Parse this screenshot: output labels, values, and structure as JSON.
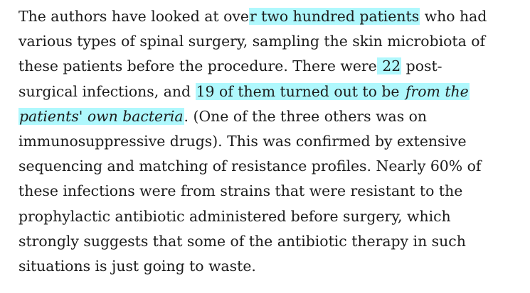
{
  "paragraph": {
    "lines": [
      {
        "segments": [
          {
            "text": "The authors have looked at ove",
            "hl": false,
            "italic": false
          },
          {
            "text": "r two hundred patients",
            "hl": true,
            "italic": false
          },
          {
            "text": " who had",
            "hl": false,
            "italic": false
          }
        ]
      },
      {
        "segments": [
          {
            "text": "various types of spinal surgery, sampling the skin microbiota of",
            "hl": false,
            "italic": false
          }
        ]
      },
      {
        "segments": [
          {
            "text": "these patients before the procedure. There were",
            "hl": false,
            "italic": false
          },
          {
            "text": " 22",
            "hl": true,
            "italic": false
          },
          {
            "text": " post-",
            "hl": false,
            "italic": false
          }
        ]
      },
      {
        "segments": [
          {
            "text": "surgical infections, and ",
            "hl": false,
            "italic": false
          },
          {
            "text": "19 of them turned out to be ",
            "hl": true,
            "italic": false
          },
          {
            "text": "from the",
            "hl": true,
            "italic": true
          }
        ]
      },
      {
        "segments": [
          {
            "text": "patients' own bacteria",
            "hl": true,
            "italic": true
          },
          {
            "text": ". (One of the three others was on",
            "hl": false,
            "italic": false
          }
        ]
      },
      {
        "segments": [
          {
            "text": "immunosuppressive drugs). This was confirmed by extensive",
            "hl": false,
            "italic": false
          }
        ]
      },
      {
        "segments": [
          {
            "text": "sequencing and matching of resistance profiles. Nearly 60% of",
            "hl": false,
            "italic": false
          }
        ]
      },
      {
        "segments": [
          {
            "text": "these infections were from strains that were resistant to the",
            "hl": false,
            "italic": false
          }
        ]
      },
      {
        "segments": [
          {
            "text": "prophylactic antibiotic administered before surgery, which",
            "hl": false,
            "italic": false
          }
        ]
      },
      {
        "segments": [
          {
            "text": "strongly suggests that some of the antibiotic therapy in such",
            "hl": false,
            "italic": false
          }
        ]
      },
      {
        "segments": [
          {
            "text": "situations is just going to waste.",
            "hl": false,
            "italic": false
          }
        ]
      }
    ]
  }
}
